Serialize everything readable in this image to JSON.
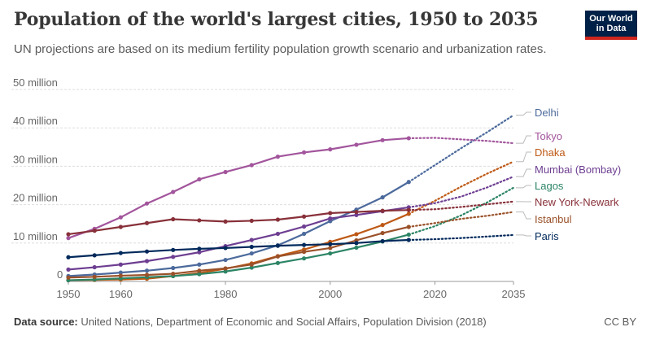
{
  "header": {
    "title": "Population of the world's largest cities, 1950 to 2035",
    "subtitle": "UN projections are based on its medium fertility population growth scenario and urbanization rates.",
    "logo_line1": "Our World",
    "logo_line2": "in Data"
  },
  "footer": {
    "source_label": "Data source:",
    "source_text": "United Nations, Department of Economic and Social Affairs, Population Division (2018)",
    "license": "CC BY"
  },
  "chart_data": {
    "type": "line",
    "title": "Population of the world's largest cities, 1950 to 2035",
    "x_ticks": [
      1950,
      1960,
      1980,
      2000,
      2020,
      2035
    ],
    "y_ticks": [
      {
        "value": 0,
        "label": "0"
      },
      {
        "value": 10000000,
        "label": "10 million"
      },
      {
        "value": 20000000,
        "label": "20 million"
      },
      {
        "value": 30000000,
        "label": "30 million"
      },
      {
        "value": 40000000,
        "label": "40 million"
      },
      {
        "value": 50000000,
        "label": "50 million"
      }
    ],
    "xlim": [
      1950,
      2035
    ],
    "ylim": [
      0,
      50000000
    ],
    "grid": "horizontal dashed",
    "x": [
      1950,
      1955,
      1960,
      1965,
      1970,
      1975,
      1980,
      1985,
      1990,
      1995,
      2000,
      2005,
      2010,
      2015
    ],
    "projection_x": [
      2020,
      2025,
      2030,
      2035
    ],
    "series": [
      {
        "name": "Delhi",
        "color": "#4c6a9c",
        "values": [
          1400000,
          1800000,
          2300000,
          2800000,
          3500000,
          4400000,
          5600000,
          7300000,
          9400000,
          12400000,
          15700000,
          18700000,
          21900000,
          25900000
        ],
        "projection": [
          30300000,
          34700000,
          38900000,
          43300000
        ]
      },
      {
        "name": "Tokyo",
        "color": "#a2559c",
        "values": [
          11300000,
          13700000,
          16700000,
          20300000,
          23300000,
          26600000,
          28500000,
          30300000,
          32500000,
          33600000,
          34400000,
          35600000,
          36800000,
          37300000
        ],
        "projection": [
          37400000,
          37000000,
          36600000,
          36000000
        ]
      },
      {
        "name": "Dhaka",
        "color": "#be5915",
        "values": [
          300000,
          400000,
          500000,
          700000,
          1400000,
          2200000,
          3300000,
          4700000,
          6600000,
          8300000,
          10300000,
          12300000,
          14700000,
          17600000
        ],
        "projection": [
          21000000,
          24700000,
          28100000,
          31200000
        ]
      },
      {
        "name": "Mumbai (Bombay)",
        "color": "#6d3e91",
        "values": [
          3100000,
          3700000,
          4400000,
          5300000,
          6400000,
          7600000,
          9200000,
          10800000,
          12400000,
          14300000,
          16400000,
          17300000,
          18300000,
          19300000
        ],
        "projection": [
          20400000,
          22100000,
          24500000,
          27300000
        ]
      },
      {
        "name": "Lagos",
        "color": "#2c8465",
        "values": [
          300000,
          500000,
          800000,
          1100000,
          1400000,
          1900000,
          2600000,
          3600000,
          4800000,
          6000000,
          7300000,
          8800000,
          10400000,
          12200000
        ],
        "projection": [
          14400000,
          17200000,
          20600000,
          24400000
        ]
      },
      {
        "name": "New York-Newark",
        "color": "#883039",
        "values": [
          12300000,
          13200000,
          14200000,
          15200000,
          16200000,
          15900000,
          15600000,
          15800000,
          16100000,
          16900000,
          17800000,
          18100000,
          18400000,
          18600000
        ],
        "projection": [
          18800000,
          19400000,
          20100000,
          20800000
        ]
      },
      {
        "name": "Istanbul",
        "color": "#9a5129",
        "values": [
          1000000,
          1200000,
          1500000,
          1700000,
          2000000,
          2800000,
          3400000,
          4400000,
          6500000,
          7700000,
          8700000,
          10700000,
          12600000,
          14200000
        ],
        "projection": [
          15200000,
          16300000,
          17100000,
          18100000
        ]
      },
      {
        "name": "Paris",
        "color": "#00295b",
        "values": [
          6300000,
          6800000,
          7400000,
          7800000,
          8200000,
          8500000,
          8700000,
          9000000,
          9300000,
          9500000,
          9700000,
          10000000,
          10500000,
          10800000
        ],
        "projection": [
          11000000,
          11300000,
          11700000,
          12100000
        ]
      }
    ],
    "label_colors": {
      "Delhi": "#4c6a9c",
      "Tokyo": "#a2559c",
      "Dhaka": "#be5915",
      "Mumbai (Bombay)": "#6d3e91",
      "Lagos": "#2c8465",
      "New York-Newark": "#883039",
      "Istanbul": "#9a5129",
      "Paris": "#00295b"
    }
  }
}
